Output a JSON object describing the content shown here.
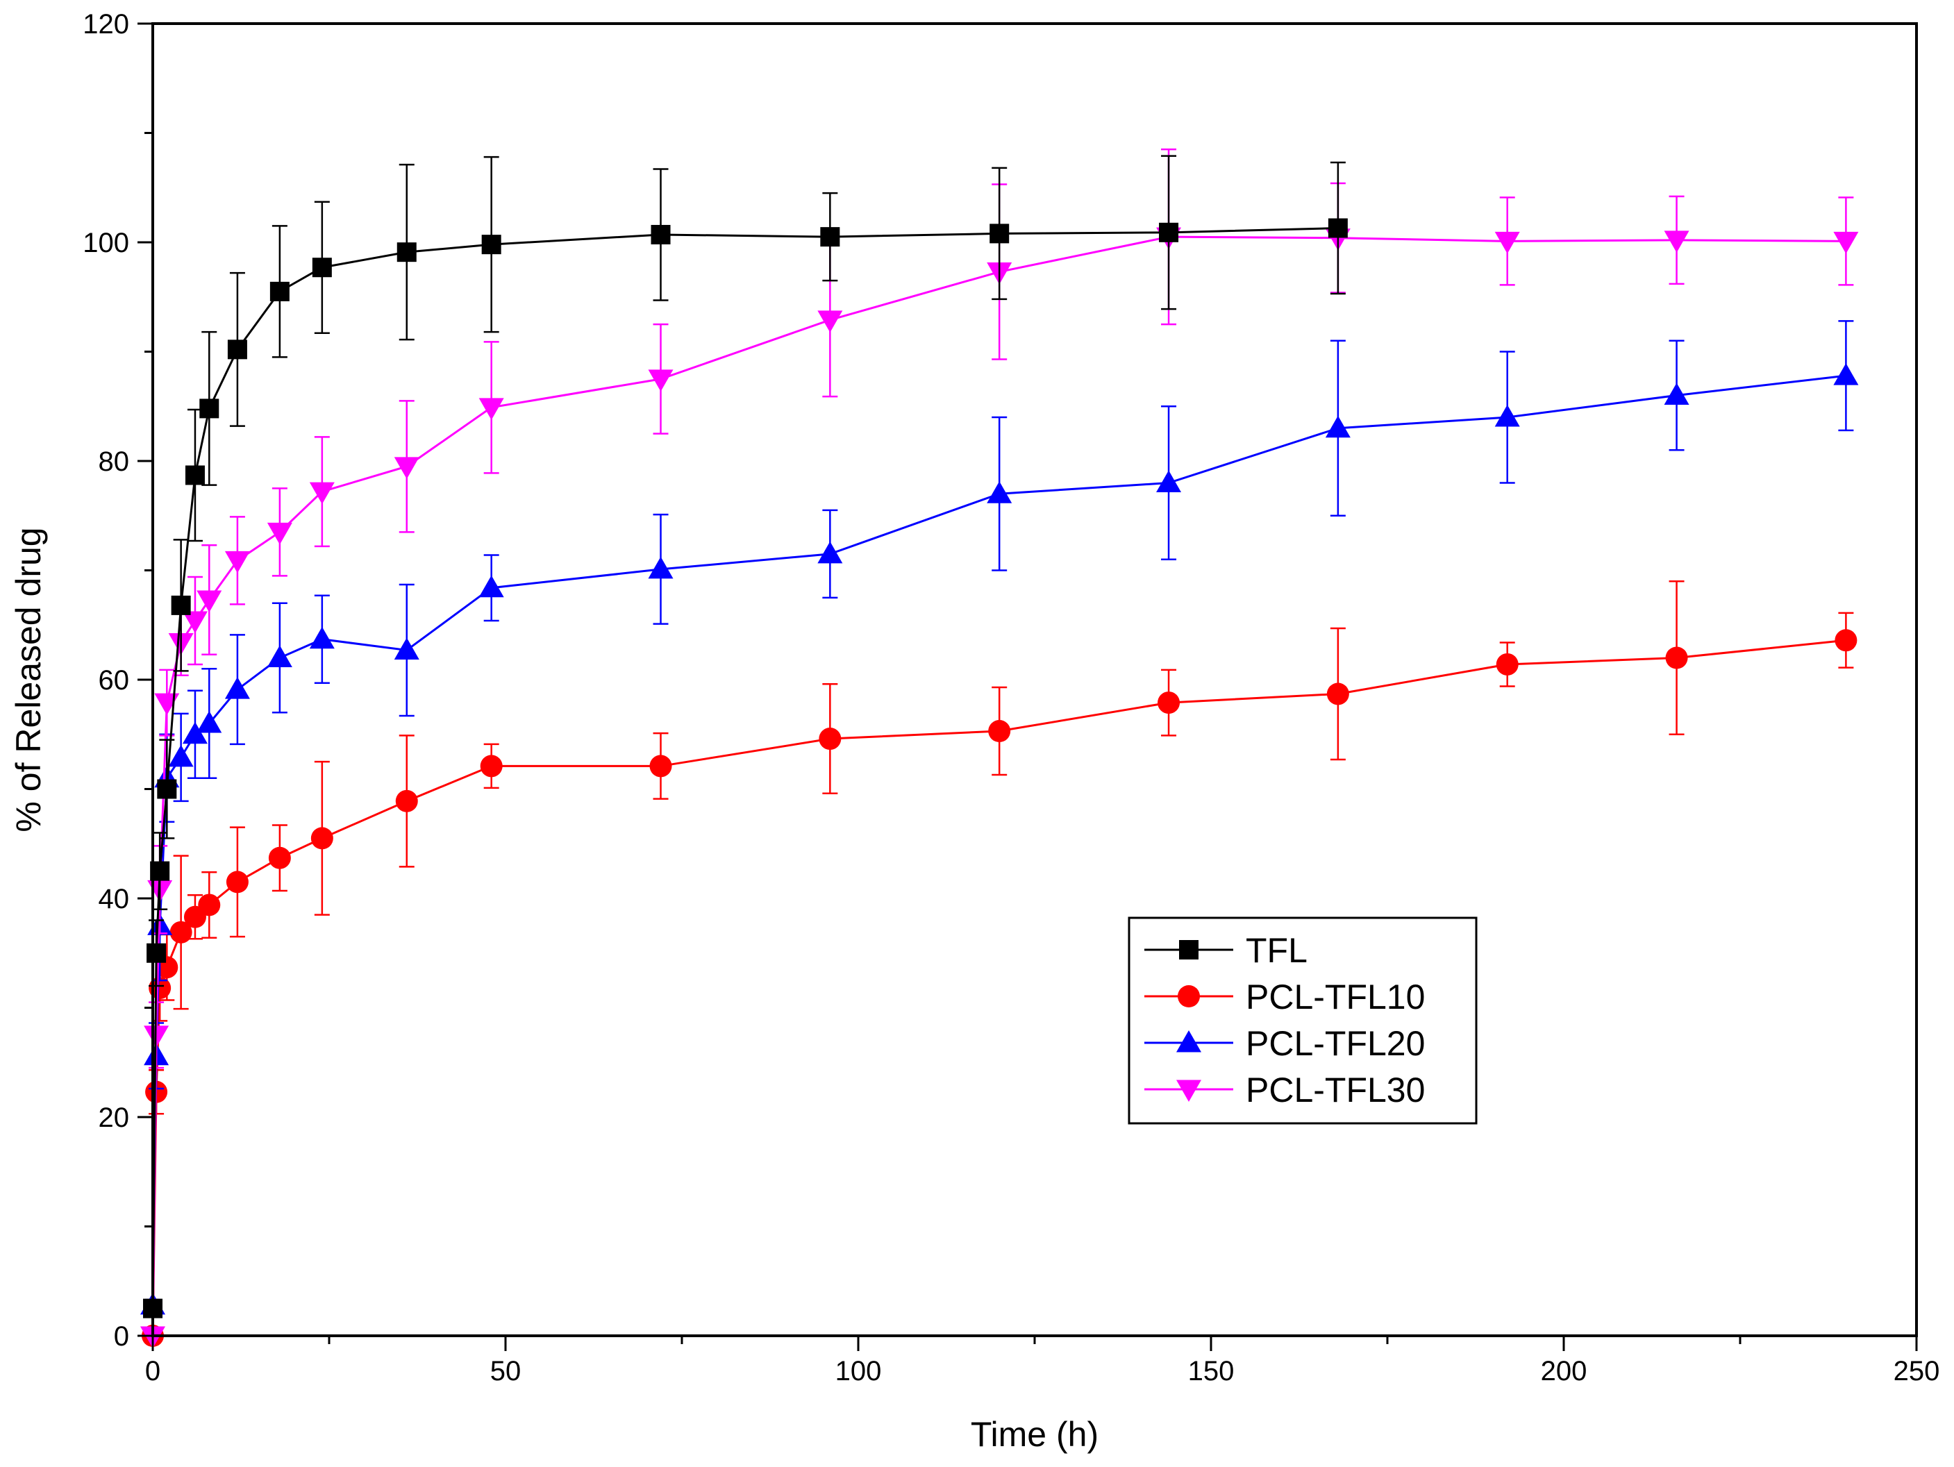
{
  "chart_data": {
    "type": "line",
    "title": "",
    "xlabel": "Time (h)",
    "ylabel": "% of Released drug",
    "xlim": [
      0,
      250
    ],
    "ylim": [
      0,
      120
    ],
    "xticks": [
      0,
      50,
      100,
      150,
      200,
      250
    ],
    "yticks": [
      0,
      20,
      40,
      60,
      80,
      100,
      120
    ],
    "xtick_labels": [
      "0",
      "50",
      "100",
      "150",
      "200",
      "250"
    ],
    "ytick_labels": [
      "0",
      "20",
      "40",
      "60",
      "80",
      "100",
      "120"
    ],
    "grid": false,
    "legend_position": "lower-center-right",
    "series": [
      {
        "name": "TFL",
        "color": "#000000",
        "marker": "square",
        "x": [
          0,
          0.5,
          1,
          2,
          4,
          6,
          8,
          12,
          18,
          24,
          36,
          48,
          72,
          96,
          120,
          144,
          168
        ],
        "y": [
          2.5,
          35,
          42.5,
          50,
          66.8,
          78.7,
          84.8,
          90.2,
          95.5,
          97.7,
          99.1,
          99.8,
          100.7,
          100.5,
          100.8,
          100.9,
          101.3
        ],
        "err": [
          0.5,
          3,
          3.5,
          4.5,
          6,
          6,
          7,
          7,
          6,
          6,
          8,
          8,
          6,
          4,
          6,
          7,
          6
        ]
      },
      {
        "name": "PCL-TFL10",
        "color": "#ff0000",
        "marker": "circle",
        "x": [
          0,
          0.5,
          1,
          2,
          4,
          6,
          8,
          12,
          18,
          24,
          36,
          48,
          72,
          96,
          120,
          144,
          168,
          192,
          216,
          240
        ],
        "y": [
          0,
          22.3,
          31.8,
          33.7,
          36.9,
          38.3,
          39.4,
          41.5,
          43.7,
          45.5,
          48.9,
          52.1,
          52.1,
          54.6,
          55.3,
          57.9,
          58.7,
          61.4,
          62,
          63.6
        ],
        "err": [
          0,
          2,
          3,
          3,
          7,
          2,
          3,
          5,
          3,
          7,
          6,
          2,
          3,
          5,
          4,
          3,
          6,
          2,
          7,
          2.5
        ]
      },
      {
        "name": "PCL-TFL20",
        "color": "#0000ff",
        "marker": "triangle-up",
        "x": [
          0,
          0.5,
          1,
          2,
          4,
          6,
          8,
          12,
          18,
          24,
          36,
          48,
          72,
          96,
          120,
          144,
          168,
          192,
          216,
          240
        ],
        "y": [
          2.8,
          25.6,
          37.5,
          51,
          52.9,
          55,
          56,
          59.1,
          62,
          63.7,
          62.7,
          68.4,
          70.1,
          71.5,
          77,
          78,
          83,
          84,
          86,
          87.8
        ],
        "err": [
          0.5,
          3,
          5,
          4,
          4,
          4,
          5,
          5,
          5,
          4,
          6,
          3,
          5,
          4,
          7,
          7,
          8,
          6,
          5,
          5
        ]
      },
      {
        "name": "PCL-TFL30",
        "color": "#ff00ff",
        "marker": "triangle-down",
        "x": [
          0,
          0.5,
          1,
          2,
          4,
          6,
          8,
          12,
          18,
          24,
          36,
          48,
          72,
          96,
          120,
          144,
          168,
          192,
          216,
          240
        ],
        "y": [
          0,
          27.5,
          40.8,
          57.9,
          63.4,
          65.4,
          67.3,
          70.9,
          73.5,
          77.2,
          79.5,
          84.9,
          87.5,
          92.9,
          97.3,
          100.5,
          100.4,
          100.1,
          100.2,
          100.1
        ],
        "err": [
          0,
          3,
          4,
          3,
          3,
          4,
          5,
          4,
          4,
          5,
          6,
          6,
          5,
          7,
          8,
          8,
          5,
          4,
          4,
          4
        ]
      }
    ]
  }
}
